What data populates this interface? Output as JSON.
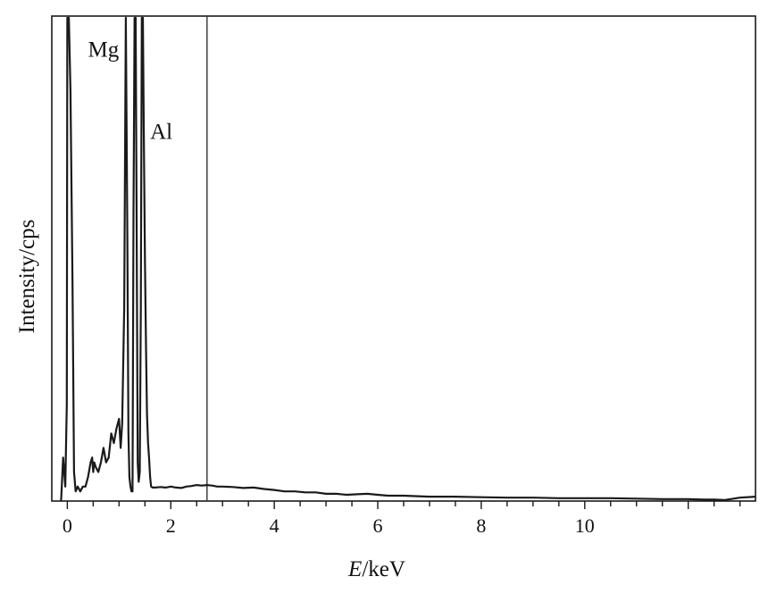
{
  "chart_data": {
    "type": "line",
    "title": "",
    "xlabel_prefix": "E",
    "xlabel_suffix": "/keV",
    "ylabel": "Intensity/cps",
    "xlim": [
      -0.3,
      13.3
    ],
    "ylim": [
      0,
      100
    ],
    "x_ticks": [
      0,
      2,
      4,
      6,
      8,
      10
    ],
    "x_tick_labels": [
      "0",
      "2",
      "4",
      "6",
      "8",
      "10"
    ],
    "minor_tick_step": 0.5,
    "grid": false,
    "legend": "none",
    "marker_line_x": 2.7,
    "line_color": "#1a1a1a",
    "annotations": [
      {
        "text": "Mg",
        "x": 0.4,
        "y": 92
      },
      {
        "text": "Al",
        "x": 1.6,
        "y": 75
      }
    ],
    "series": [
      {
        "x": [
          -0.12,
          -0.08,
          -0.04,
          -0.01,
          0.0,
          0.03,
          0.06,
          0.1,
          0.13,
          0.16,
          0.2,
          0.25,
          0.3,
          0.35,
          0.4,
          0.45,
          0.48,
          0.5,
          0.52,
          0.55,
          0.6,
          0.65,
          0.7,
          0.75,
          0.8,
          0.85,
          0.9,
          0.95,
          1.0,
          1.03,
          1.06,
          1.1,
          1.13,
          1.16,
          1.18,
          1.2,
          1.22,
          1.24,
          1.26,
          1.28,
          1.3,
          1.32,
          1.34,
          1.36,
          1.38,
          1.4,
          1.42,
          1.44,
          1.46,
          1.48,
          1.5,
          1.52,
          1.54,
          1.56,
          1.58,
          1.6,
          1.62,
          1.65,
          1.7,
          1.8,
          1.9,
          2.0,
          2.1,
          2.2,
          2.3,
          2.4,
          2.5,
          2.6,
          2.7,
          2.8,
          2.9,
          3.0,
          3.2,
          3.4,
          3.6,
          3.8,
          4.0,
          4.2,
          4.4,
          4.6,
          4.8,
          5.0,
          5.2,
          5.4,
          5.6,
          5.8,
          6.0,
          6.2,
          6.5,
          7.0,
          7.5,
          8.0,
          8.5,
          9.0,
          9.5,
          10.0,
          10.5,
          11.0,
          11.5,
          12.0,
          12.3,
          12.5,
          12.7,
          13.0,
          13.3
        ],
        "y": [
          0,
          9,
          3,
          20,
          100,
          100,
          85,
          45,
          6,
          2,
          3,
          2,
          3,
          3,
          5,
          8,
          9,
          6,
          8,
          7,
          6,
          8,
          11,
          8,
          9,
          14,
          12,
          15,
          17,
          11,
          16,
          40,
          100,
          55,
          14,
          5,
          3,
          2,
          2,
          60,
          100,
          100,
          58,
          8,
          4,
          6,
          40,
          100,
          100,
          75,
          50,
          32,
          18,
          12,
          9,
          5,
          3,
          2.8,
          2.8,
          2.9,
          2.8,
          3.0,
          2.8,
          2.7,
          3.0,
          3.1,
          3.3,
          3.2,
          3.3,
          3.2,
          3.0,
          3.0,
          2.9,
          2.7,
          2.8,
          2.5,
          2.3,
          2.0,
          2.0,
          1.8,
          1.8,
          1.5,
          1.5,
          1.3,
          1.4,
          1.5,
          1.3,
          1.1,
          1.1,
          0.9,
          0.9,
          0.8,
          0.7,
          0.7,
          0.6,
          0.6,
          0.6,
          0.5,
          0.4,
          0.4,
          0.3,
          0.3,
          0.2,
          0.7,
          0.9
        ]
      }
    ]
  }
}
